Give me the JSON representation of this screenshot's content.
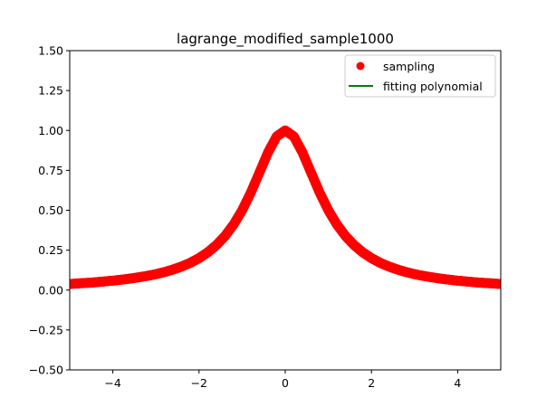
{
  "chart_data": {
    "type": "scatter",
    "title": "lagrange_modified_sample1000",
    "xlabel": "",
    "ylabel": "",
    "xlim": [
      -5,
      5
    ],
    "ylim": [
      -0.5,
      1.5
    ],
    "x_ticks": [
      -4,
      -2,
      0,
      2,
      4
    ],
    "x_tick_labels": [
      "−4",
      "−2",
      "0",
      "2",
      "4"
    ],
    "y_ticks": [
      -0.5,
      -0.25,
      0.0,
      0.25,
      0.5,
      0.75,
      1.0,
      1.25,
      1.5
    ],
    "y_tick_labels": [
      "−0.50",
      "−0.25",
      "0.00",
      "0.25",
      "0.50",
      "0.75",
      "1.00",
      "1.25",
      "1.50"
    ],
    "grid": false,
    "legend_position": "top-right",
    "series": [
      {
        "name": "sampling",
        "kind": "points",
        "color": "#ff0000",
        "marker": "circle",
        "x": [
          -5.0,
          -4.8,
          -4.6,
          -4.4,
          -4.2,
          -4.0,
          -3.8,
          -3.6,
          -3.4,
          -3.2,
          -3.0,
          -2.8,
          -2.6,
          -2.4,
          -2.2,
          -2.0,
          -1.8,
          -1.6,
          -1.4,
          -1.2,
          -1.0,
          -0.8,
          -0.6,
          -0.4,
          -0.2,
          0.0,
          0.2,
          0.4,
          0.6,
          0.8,
          1.0,
          1.2,
          1.4,
          1.6,
          1.8,
          2.0,
          2.2,
          2.4,
          2.6,
          2.8,
          3.0,
          3.2,
          3.4,
          3.6,
          3.8,
          4.0,
          4.2,
          4.4,
          4.6,
          4.8,
          5.0
        ],
        "y": [
          0.038,
          0.042,
          0.045,
          0.049,
          0.054,
          0.059,
          0.065,
          0.072,
          0.08,
          0.089,
          0.1,
          0.113,
          0.129,
          0.148,
          0.171,
          0.2,
          0.236,
          0.281,
          0.338,
          0.41,
          0.5,
          0.61,
          0.735,
          0.862,
          0.962,
          1.0,
          0.962,
          0.862,
          0.735,
          0.61,
          0.5,
          0.41,
          0.338,
          0.281,
          0.236,
          0.2,
          0.171,
          0.148,
          0.129,
          0.113,
          0.1,
          0.089,
          0.08,
          0.072,
          0.065,
          0.059,
          0.054,
          0.049,
          0.045,
          0.042,
          0.038
        ]
      },
      {
        "name": "fitting polynomial",
        "kind": "line",
        "color": "#008000",
        "x": [],
        "y": []
      }
    ]
  }
}
